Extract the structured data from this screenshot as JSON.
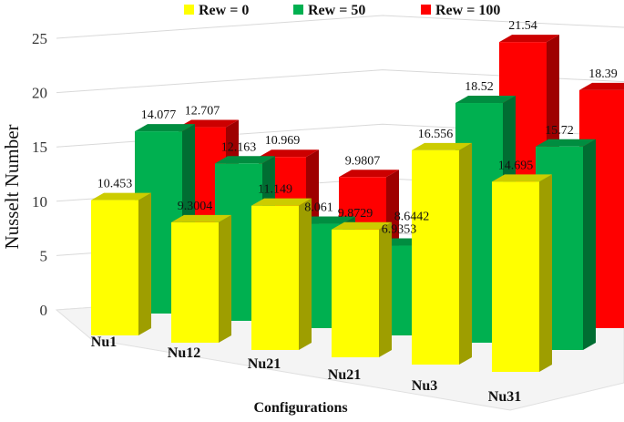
{
  "chart_data": {
    "type": "bar",
    "style": "3d-clustered-depth",
    "title": "",
    "xlabel": "Configurations",
    "ylabel": "Nusselt Number",
    "ylim": [
      0,
      25
    ],
    "yticks": [
      0,
      5,
      10,
      15,
      20,
      25
    ],
    "grid": true,
    "legend_position": "top",
    "categories": [
      "Nu1",
      "Nu12",
      "Nu21",
      "Nu21",
      "Nu3",
      "Nu31"
    ],
    "series": [
      {
        "name": "Rew = 0",
        "color": "#FFFF00",
        "values": [
          10.453,
          9.3004,
          11.149,
          9.8729,
          16.556,
          14.695
        ],
        "labels": [
          "10.453",
          "9.3004",
          "11.149",
          "9.8729",
          "16.556",
          "14.695"
        ]
      },
      {
        "name": "Rew = 50",
        "color": "#00B050",
        "values": [
          14.077,
          12.163,
          8.061,
          6.9353,
          18.52,
          15.72
        ],
        "labels": [
          "14.077",
          "12.163",
          "8.061",
          "6.9353",
          "18.52",
          "15.72"
        ]
      },
      {
        "name": "Rew = 100",
        "color": "#FF0000",
        "values": [
          12.707,
          10.969,
          9.9807,
          8.6442,
          21.54,
          18.39
        ],
        "labels": [
          "12.707",
          "10.969",
          "9.9807",
          "8.6442",
          "21.54",
          "18.39"
        ]
      }
    ]
  }
}
